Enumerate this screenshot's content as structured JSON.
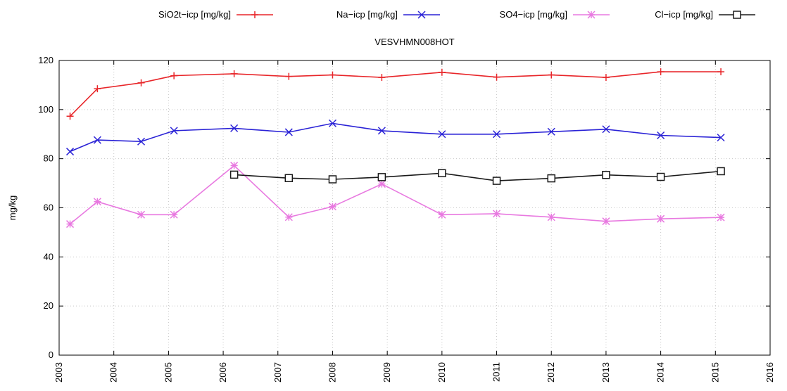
{
  "chart_data": {
    "type": "line",
    "title": "VESVHMN008HOT",
    "xlabel": "",
    "ylabel": "mg/kg",
    "xlim": [
      2003,
      2016
    ],
    "ylim": [
      0,
      120
    ],
    "x_ticks": [
      "2003",
      "2004",
      "2005",
      "2006",
      "2007",
      "2008",
      "2009",
      "2010",
      "2011",
      "2012",
      "2013",
      "2014",
      "2015",
      "2016"
    ],
    "y_ticks": [
      "0",
      "20",
      "40",
      "60",
      "80",
      "100",
      "120"
    ],
    "grid": true,
    "legend_position": "top",
    "series": [
      {
        "name": "SiO2t−icp [mg/kg]",
        "color": "#e8262a",
        "marker": "plus",
        "x": [
          2003.2,
          2003.7,
          2004.5,
          2005.1,
          2006.2,
          2007.2,
          2008.0,
          2008.9,
          2010.0,
          2011.0,
          2012.0,
          2013.0,
          2014.0,
          2015.1
        ],
        "y": [
          97.3,
          108.5,
          110.9,
          113.8,
          114.6,
          113.5,
          114.1,
          113.1,
          115.2,
          113.2,
          114.1,
          113.1,
          115.4,
          115.4
        ]
      },
      {
        "name": "Na−icp [mg/kg]",
        "color": "#2a22d6",
        "marker": "x",
        "x": [
          2003.2,
          2003.7,
          2004.5,
          2005.1,
          2006.2,
          2007.2,
          2008.0,
          2008.9,
          2010.0,
          2011.0,
          2012.0,
          2013.0,
          2014.0,
          2015.1
        ],
        "y": [
          82.9,
          87.6,
          87.0,
          91.4,
          92.4,
          90.8,
          94.4,
          91.4,
          90.0,
          90.0,
          91.0,
          92.0,
          89.5,
          88.6
        ]
      },
      {
        "name": "SO4−icp [mg/kg]",
        "color": "#e879e0",
        "marker": "star",
        "x": [
          2003.2,
          2003.7,
          2004.5,
          2005.1,
          2006.2,
          2007.2,
          2008.0,
          2008.9,
          2010.0,
          2011.0,
          2012.0,
          2013.0,
          2014.0,
          2015.1
        ],
        "y": [
          53.4,
          62.5,
          57.2,
          57.2,
          77.2,
          56.2,
          60.5,
          69.7,
          57.2,
          57.6,
          56.2,
          54.5,
          55.5,
          56.1
        ]
      },
      {
        "name": "Cl−icp [mg/kg]",
        "color": "#1a1a1a",
        "marker": "square",
        "x": [
          2006.2,
          2007.2,
          2008.0,
          2008.9,
          2010.0,
          2011.0,
          2012.0,
          2013.0,
          2014.0,
          2015.1
        ],
        "y": [
          73.5,
          72.1,
          71.6,
          72.5,
          74.1,
          71.0,
          72.0,
          73.4,
          72.6,
          74.9
        ]
      }
    ]
  }
}
